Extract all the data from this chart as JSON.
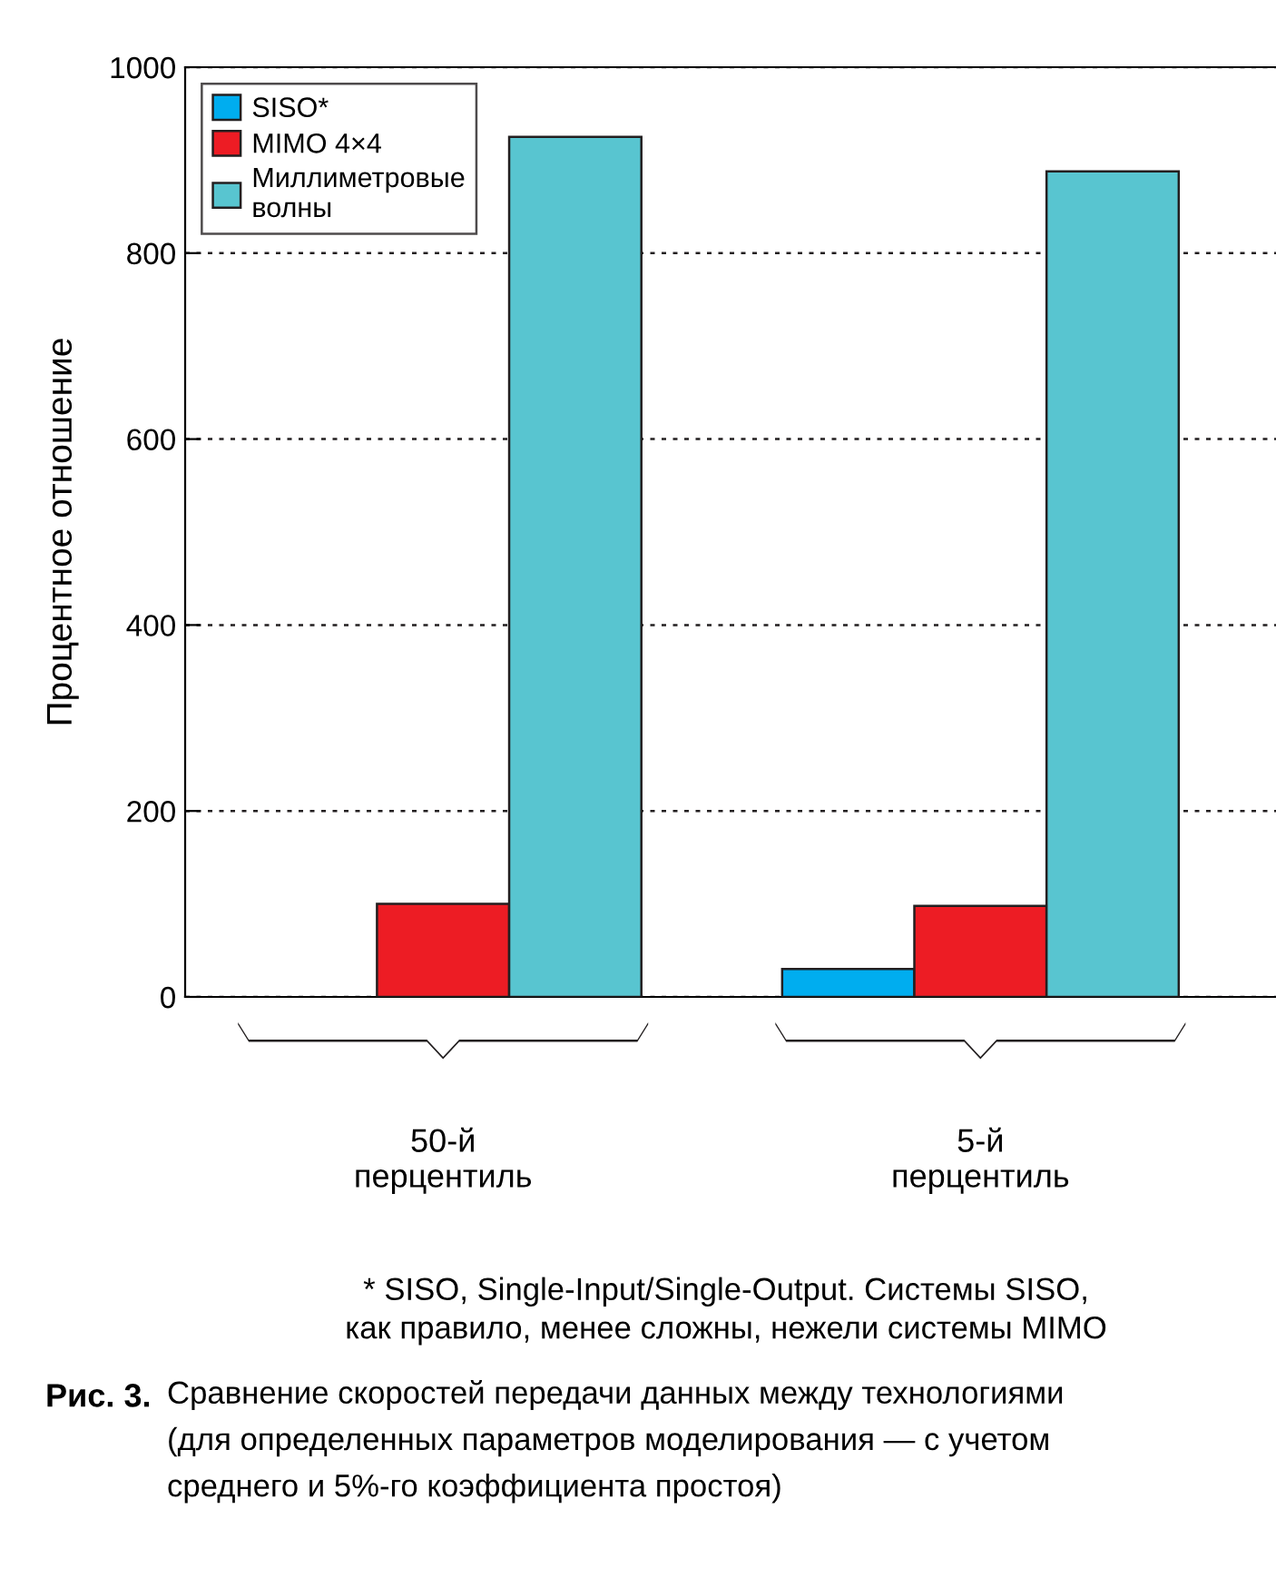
{
  "chart_data": {
    "type": "bar",
    "ylabel": "Процентное отношение",
    "categories": [
      "50-й\nперцентиль",
      "5-й\nперцентиль"
    ],
    "series": [
      {
        "name": "SISO*",
        "color": "#00adef",
        "values": [
          null,
          30
        ]
      },
      {
        "name": "MIMO 4×4",
        "color": "#ed1c24",
        "values": [
          100,
          98
        ]
      },
      {
        "name": "Миллиметровые\nволны",
        "color": "#58c5d0",
        "values": [
          925,
          888
        ]
      }
    ],
    "ylim": [
      0,
      1000
    ],
    "yticks": [
      0,
      200,
      400,
      600,
      800,
      1000
    ],
    "grid": "y",
    "legend": "top left",
    "annotations": [
      "* SISO, Single-Input/Single-Output. Системы SISO,\nкак правило, менее сложны, нежели системы MIMO",
      "Рис. 3.",
      "Сравнение скоростей передачи данных между технологиями\n(для определенных параметров моделирования — с учетом\nсреднего и 5%-го коэффициента простоя)"
    ]
  }
}
